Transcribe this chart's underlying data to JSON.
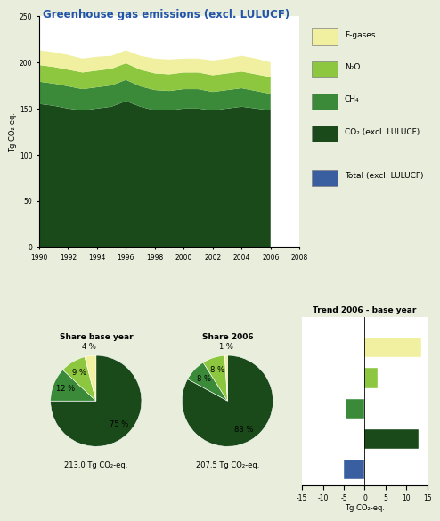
{
  "title": "Greenhouse gas emissions (excl. LULUCF)",
  "background_color": "#e8eddc",
  "area_years": [
    1990,
    1991,
    1992,
    1993,
    1994,
    1995,
    1996,
    1997,
    1998,
    1999,
    2000,
    2001,
    2002,
    2003,
    2004,
    2005,
    2006
  ],
  "co2_values": [
    155,
    153,
    150,
    148,
    150,
    152,
    158,
    152,
    148,
    148,
    150,
    150,
    148,
    150,
    152,
    150,
    148
  ],
  "ch4_values": [
    24,
    24,
    24,
    23,
    23,
    23,
    23,
    22,
    22,
    21,
    21,
    21,
    20,
    20,
    20,
    19,
    18
  ],
  "n2o_values": [
    18,
    18,
    18,
    18,
    18,
    18,
    18,
    18,
    18,
    18,
    18,
    18,
    18,
    18,
    18,
    18,
    18
  ],
  "fgas_values": [
    16,
    16,
    16,
    15,
    15,
    14,
    14,
    15,
    16,
    16,
    15,
    15,
    16,
    16,
    17,
    17,
    16
  ],
  "color_co2": "#1a4a1a",
  "color_ch4": "#3a8a3a",
  "color_n2o": "#8dc63f",
  "color_fgas": "#f0f0a0",
  "color_total": "#3a5fa0",
  "area_ylim": [
    0,
    250
  ],
  "area_yticks": [
    0,
    50,
    100,
    150,
    200,
    250
  ],
  "area_xticks": [
    1990,
    1992,
    1994,
    1996,
    1998,
    2000,
    2002,
    2004,
    2006,
    2008
  ],
  "pie1_values": [
    75,
    12,
    9,
    4
  ],
  "pie2_values": [
    83,
    8,
    8,
    1
  ],
  "pie_labels_1": [
    "75 %",
    "12 %",
    "9 %",
    "4 %"
  ],
  "pie_labels_2": [
    "83 %",
    "8 %",
    "8 %",
    "1 %"
  ],
  "pie_colors": [
    "#1a4a1a",
    "#3a8a3a",
    "#8dc63f",
    "#f0f0a0"
  ],
  "pie1_total": "213.0 Tg CO₂-eq.",
  "pie2_total": "207.5 Tg CO₂-eq.",
  "pie1_title": "Share base year",
  "pie2_title": "Share 2006",
  "trend_title": "Trend 2006 - base year",
  "trend_categories": [
    "F-gases",
    "N₂O",
    "CH₄",
    "CO₂ (excl. LULUCF)",
    "Total (excl. LULUCF)"
  ],
  "trend_values": [
    13.5,
    3.0,
    -4.5,
    13.0,
    -5.0
  ],
  "trend_colors": [
    "#f0f0a0",
    "#8dc63f",
    "#3a8a3a",
    "#1a4a1a",
    "#3a5fa0"
  ],
  "trend_xlim": [
    -15,
    15
  ],
  "trend_xticks": [
    -15,
    -10,
    -5,
    0,
    5,
    10,
    15
  ],
  "legend_labels": [
    "F-gases",
    "N₂O",
    "CH₄",
    "CO₂ (excl. LULUCF)",
    "",
    "Total (excl. LULUCF)"
  ],
  "legend_colors": [
    "#f0f0a0",
    "#8dc63f",
    "#3a8a3a",
    "#1a4a1a",
    null,
    "#3a5fa0"
  ]
}
